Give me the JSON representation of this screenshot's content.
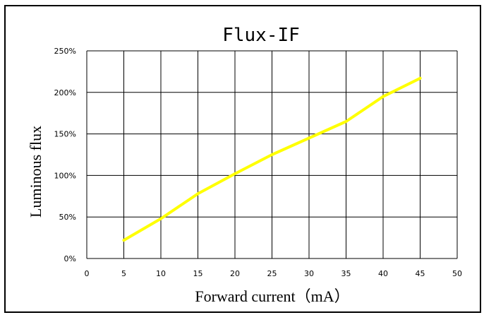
{
  "chart_data": {
    "type": "line",
    "title": "Flux-IF",
    "xlabel": "Forward current（mA）",
    "ylabel": "Luminous flux",
    "xlim": [
      0,
      50
    ],
    "ylim": [
      0,
      250
    ],
    "x_ticks": [
      "0",
      "5",
      "10",
      "15",
      "20",
      "25",
      "30",
      "35",
      "40",
      "45",
      "50"
    ],
    "y_ticks": [
      "0%",
      "50%",
      "100%",
      "150%",
      "200%",
      "250%"
    ],
    "grid": true,
    "series": [
      {
        "color": "#ffff00",
        "x": [
          5,
          10,
          15,
          20,
          25,
          30,
          35,
          40,
          45
        ],
        "y": [
          22,
          48,
          78,
          102,
          125,
          145,
          165,
          195,
          217
        ]
      }
    ]
  }
}
